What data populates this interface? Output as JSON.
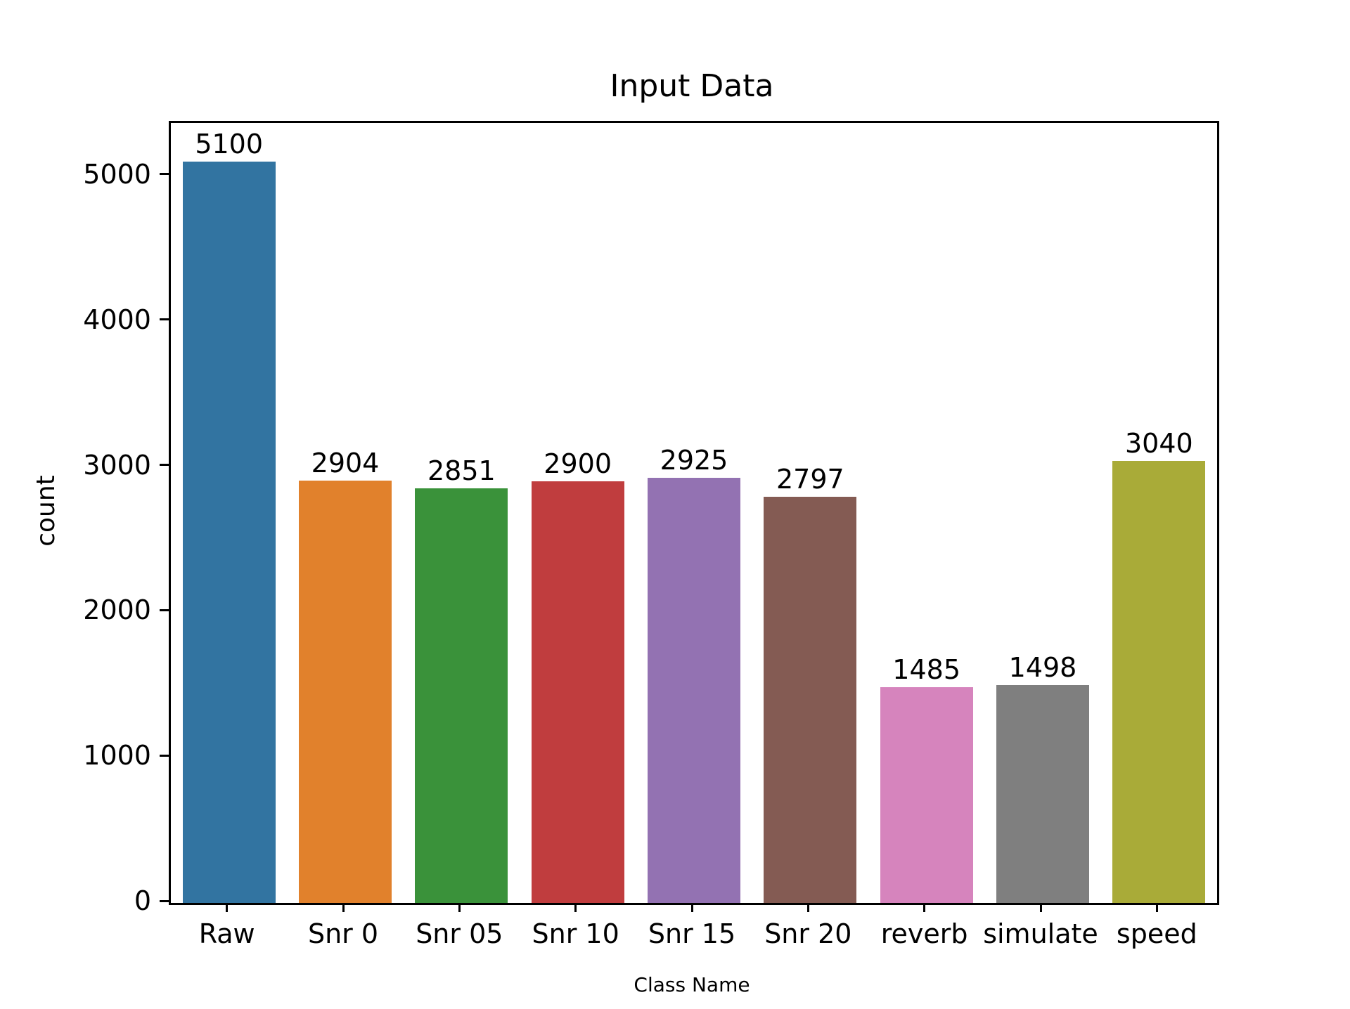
{
  "figure": {
    "background": "#ffffff",
    "text_color": "#000000"
  },
  "chart_data": {
    "type": "bar",
    "title": "Input Data",
    "xlabel": "Class Name",
    "ylabel": "count",
    "categories": [
      "Raw",
      "Snr 0",
      "Snr 05",
      "Snr 10",
      "Snr 15",
      "Snr 20",
      "reverb",
      "simulate",
      "speed"
    ],
    "values": [
      5100,
      2904,
      2851,
      2900,
      2925,
      2797,
      1485,
      1498,
      3040
    ],
    "value_labels": [
      "5100",
      "2904",
      "2851",
      "2900",
      "2925",
      "2797",
      "1485",
      "1498",
      "3040"
    ],
    "bar_colors": [
      "#3274a1",
      "#e1812c",
      "#3a923a",
      "#c03d3e",
      "#9372b2",
      "#845b53",
      "#d684bd",
      "#7f7f7f",
      "#a9ab38"
    ],
    "yticks": [
      0,
      1000,
      2000,
      3000,
      4000,
      5000
    ],
    "ytick_labels": [
      "0",
      "1000",
      "2000",
      "3000",
      "4000",
      "5000"
    ],
    "ylim": [
      0,
      5367
    ],
    "grid": false,
    "legend_position": "none"
  }
}
